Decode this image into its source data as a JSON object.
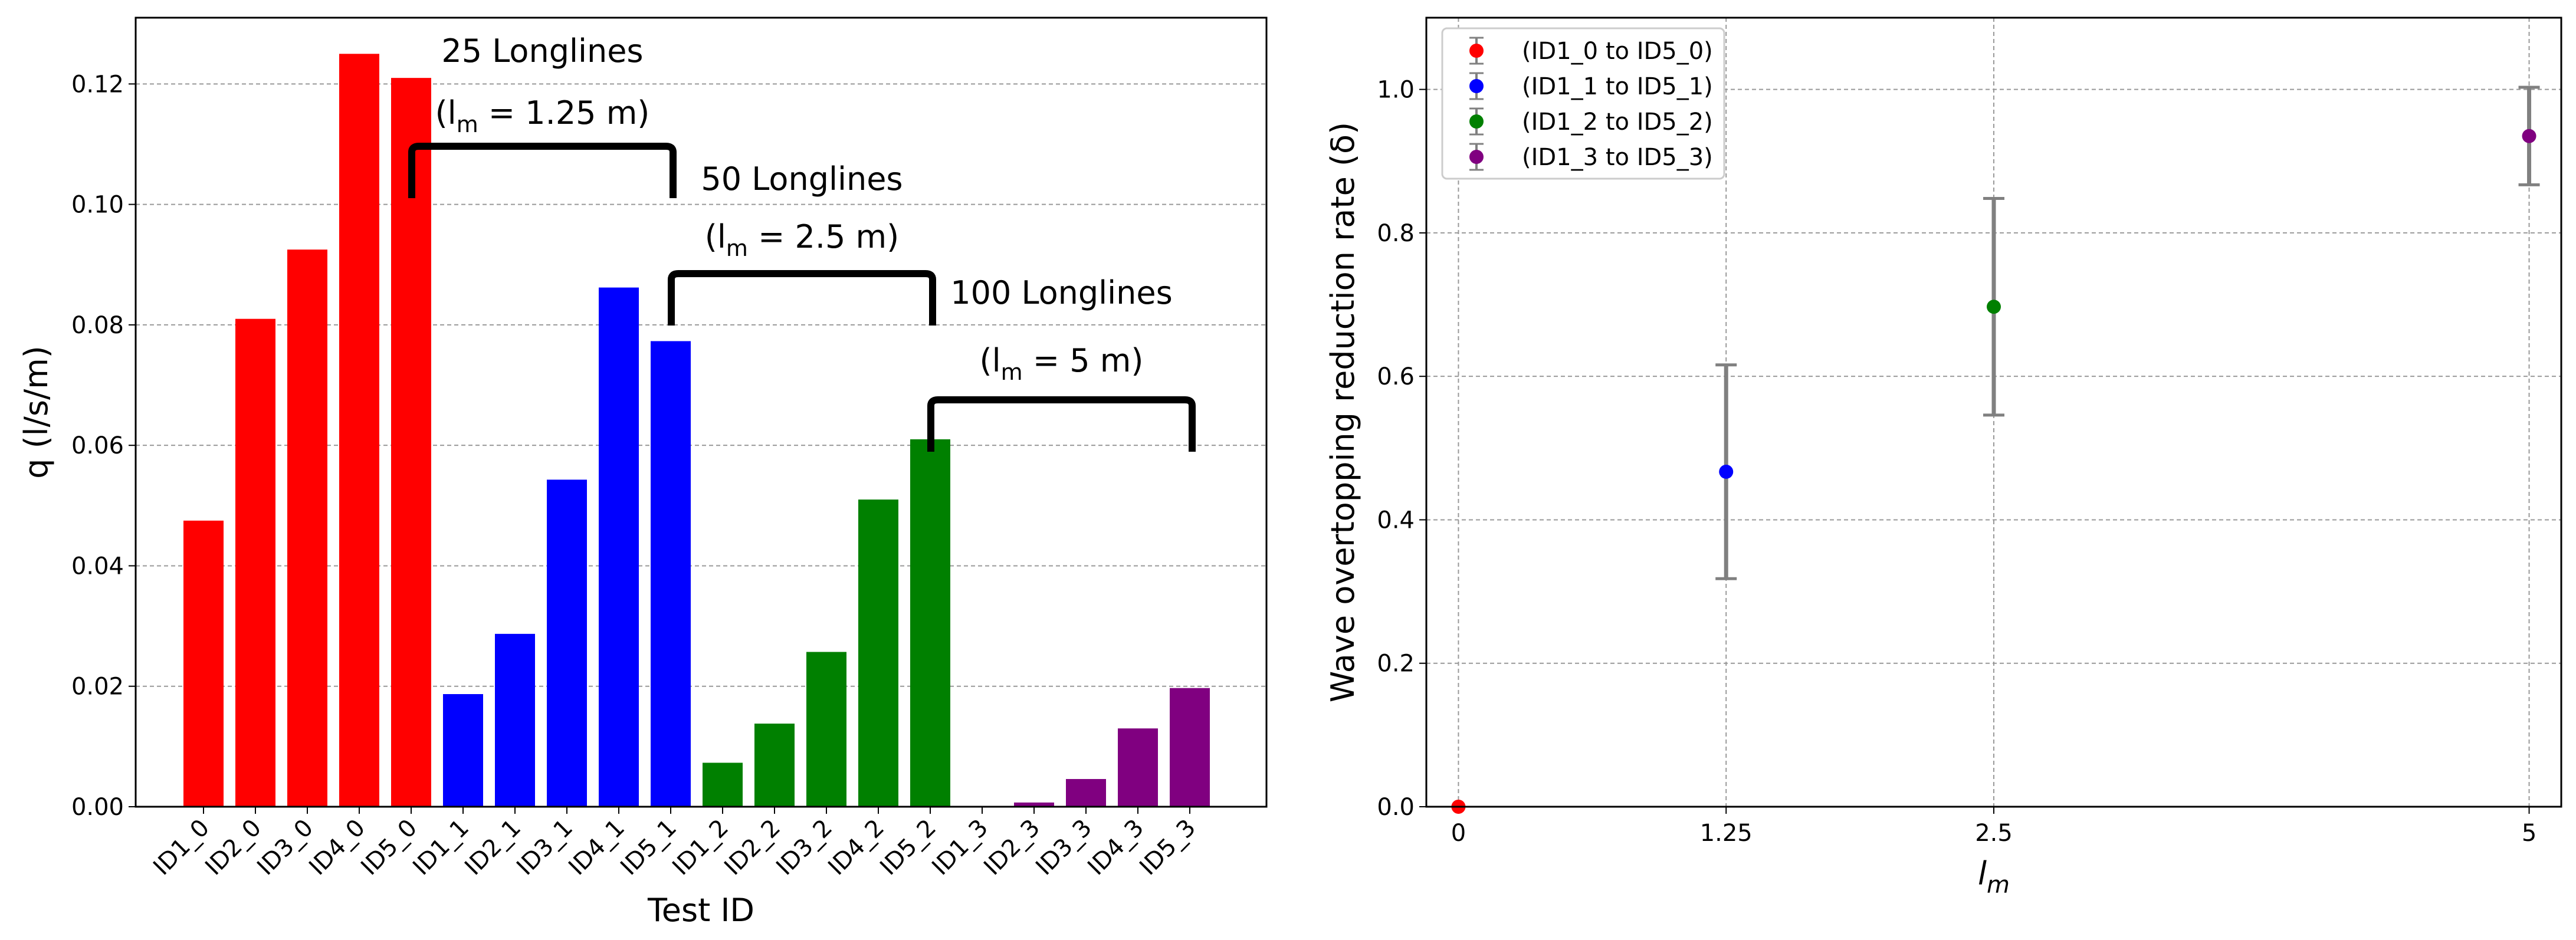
{
  "chart_data": [
    {
      "type": "bar",
      "title": "",
      "xlabel": "Test ID",
      "ylabel": "q (l/s/m)",
      "ylim": [
        0,
        0.131
      ],
      "yticks": [
        "0.00",
        "0.02",
        "0.04",
        "0.06",
        "0.08",
        "0.10",
        "0.12"
      ],
      "grid": "y-dashed",
      "categories": [
        "ID1_0",
        "ID2_0",
        "ID3_0",
        "ID4_0",
        "ID5_0",
        "ID1_1",
        "ID2_1",
        "ID3_1",
        "ID4_1",
        "ID5_1",
        "ID1_2",
        "ID2_2",
        "ID3_2",
        "ID4_2",
        "ID5_2",
        "ID1_3",
        "ID2_3",
        "ID3_3",
        "ID4_3",
        "ID5_3"
      ],
      "values": [
        0.0475,
        0.081,
        0.0925,
        0.125,
        0.121,
        0.0187,
        0.0287,
        0.0543,
        0.0862,
        0.0773,
        0.0073,
        0.0138,
        0.0257,
        0.051,
        0.061,
        0.0,
        0.0007,
        0.0046,
        0.013,
        0.0197
      ],
      "colors": [
        "#ff0000",
        "#ff0000",
        "#ff0000",
        "#ff0000",
        "#ff0000",
        "#0000ff",
        "#0000ff",
        "#0000ff",
        "#0000ff",
        "#0000ff",
        "#008000",
        "#008000",
        "#008000",
        "#008000",
        "#008000",
        "#800080",
        "#800080",
        "#800080",
        "#800080",
        "#800080"
      ],
      "annotations": [
        {
          "text": "25 Longlines",
          "lm_prefix": "(l",
          "lm_sub": "m",
          "lm_value": " = 1.25 m)",
          "from": 4,
          "to": 9
        },
        {
          "text": "50 Longlines",
          "lm_prefix": "(l",
          "lm_sub": "m",
          "lm_value": " = 2.5 m)",
          "from": 9,
          "to": 14
        },
        {
          "text": "100 Longlines",
          "lm_prefix": "(l",
          "lm_sub": "m",
          "lm_value": " = 5 m)",
          "from": 14,
          "to": 19
        }
      ]
    },
    {
      "type": "scatter",
      "title": "",
      "xlabel": "l",
      "xlabel_sub": "m",
      "ylabel": "Wave overtopping reduction rate (δ)",
      "xlim": [
        -0.15,
        5.15
      ],
      "ylim": [
        0.0,
        1.1
      ],
      "xticks": [
        0,
        1.25,
        2.5,
        5
      ],
      "xtick_labels": [
        "0",
        "1.25",
        "2.5",
        "5"
      ],
      "yticks": [
        "0.0",
        "0.2",
        "0.4",
        "0.6",
        "0.8",
        "1.0"
      ],
      "grid": "both-dashed",
      "legend": "top-left",
      "series": [
        {
          "name": "(ID1_0 to ID5_0)",
          "color": "#ff0000",
          "x": 0,
          "y": 0.0,
          "err": 0.0
        },
        {
          "name": "(ID1_1 to ID5_1)",
          "color": "#0000ff",
          "x": 1.25,
          "y": 0.467,
          "err": 0.149
        },
        {
          "name": "(ID1_2 to ID5_2)",
          "color": "#008000",
          "x": 2.5,
          "y": 0.697,
          "err": 0.151
        },
        {
          "name": "(ID1_3 to ID5_3)",
          "color": "#800080",
          "x": 5,
          "y": 0.935,
          "err": 0.068
        }
      ]
    }
  ]
}
